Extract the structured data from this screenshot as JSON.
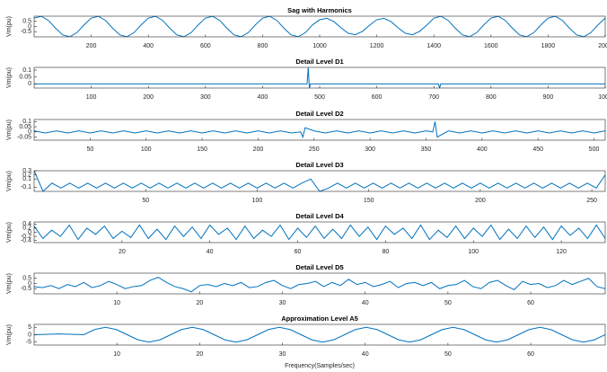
{
  "chart_data": [
    {
      "type": "line",
      "title": "Sag with Harmonics",
      "ylabel": "Vm(pu)",
      "color": "#0072bd",
      "x": [
        0,
        25,
        50,
        75,
        100,
        125,
        150,
        175,
        200,
        225,
        250,
        275,
        300,
        325,
        350,
        375,
        400,
        425,
        450,
        475,
        500,
        525,
        550,
        575,
        600,
        625,
        650,
        675,
        700,
        725,
        750,
        775,
        800,
        825,
        850,
        875,
        900,
        925,
        950,
        975,
        1000,
        1025,
        1050,
        1075,
        1100,
        1125,
        1150,
        1175,
        1200,
        1225,
        1250,
        1275,
        1300,
        1325,
        1350,
        1375,
        1400,
        1425,
        1450,
        1475,
        1500,
        1525,
        1550,
        1575,
        1600,
        1625,
        1650,
        1675,
        1700,
        1725,
        1750,
        1775,
        1800,
        1825,
        1850,
        1875,
        1900,
        1925,
        1950,
        1975,
        2000
      ],
      "values": [
        0.81,
        0.99,
        0.59,
        -0.16,
        -0.81,
        -0.99,
        -0.59,
        0.16,
        0.81,
        0.99,
        0.59,
        -0.16,
        -0.81,
        -0.99,
        -0.59,
        0.16,
        0.81,
        0.99,
        0.59,
        -0.16,
        -0.81,
        -0.99,
        -0.59,
        0.16,
        0.81,
        0.99,
        0.59,
        -0.16,
        -0.81,
        -0.99,
        -0.59,
        0.16,
        0.81,
        0.99,
        0.59,
        -0.16,
        -0.81,
        -0.99,
        -0.59,
        0.16,
        0.65,
        0.79,
        0.47,
        -0.13,
        -0.65,
        -0.79,
        -0.47,
        0.13,
        0.65,
        0.79,
        0.47,
        -0.13,
        -0.65,
        -0.79,
        -0.47,
        0.13,
        0.81,
        0.99,
        0.59,
        -0.16,
        -0.81,
        -0.99,
        -0.59,
        0.16,
        0.81,
        0.99,
        0.59,
        -0.16,
        -0.81,
        -0.99,
        -0.59,
        0.16,
        0.81,
        0.99,
        0.59,
        -0.16,
        -0.81,
        -0.99,
        -0.59,
        0.16,
        0.81
      ],
      "xlim": [
        0,
        2000
      ],
      "ylim": [
        -1,
        1
      ],
      "xticks": [
        200,
        400,
        600,
        800,
        1000,
        1200,
        1400,
        1600,
        1800,
        2000
      ],
      "yticks": [
        -0.5,
        0,
        0.5
      ]
    },
    {
      "type": "line",
      "title": "Detail Level D1",
      "ylabel": "Vm(pu)",
      "color": "#0072bd",
      "x": [
        0,
        478,
        480,
        482,
        484,
        708,
        710,
        712,
        1000
      ],
      "values": [
        0,
        0,
        0.12,
        -0.03,
        0,
        0,
        -0.03,
        0,
        0
      ],
      "xlim": [
        0,
        1000
      ],
      "ylim": [
        -0.03,
        0.12
      ],
      "xticks": [
        100,
        200,
        300,
        400,
        500,
        600,
        700,
        800,
        900,
        1000
      ],
      "yticks": [
        0,
        0.05,
        0.1
      ]
    },
    {
      "type": "line",
      "title": "Detail Level D2",
      "ylabel": "Vm(pu)",
      "color": "#0072bd",
      "x": [
        0,
        10,
        20,
        30,
        40,
        50,
        60,
        70,
        80,
        90,
        100,
        110,
        120,
        130,
        140,
        150,
        160,
        170,
        180,
        190,
        200,
        210,
        220,
        230,
        238,
        240,
        242,
        250,
        260,
        270,
        280,
        290,
        300,
        310,
        320,
        330,
        340,
        350,
        356,
        358,
        360,
        370,
        380,
        390,
        400,
        410,
        420,
        430,
        440,
        450,
        460,
        470,
        480,
        490,
        500,
        510
      ],
      "values": [
        0.01,
        -0.01,
        0.01,
        -0.01,
        0.01,
        -0.01,
        0.01,
        -0.01,
        0.01,
        -0.01,
        0.01,
        -0.01,
        0.01,
        -0.01,
        0.01,
        -0.01,
        0.01,
        -0.01,
        0.01,
        -0.01,
        0.01,
        -0.01,
        0.01,
        -0.01,
        0,
        -0.05,
        0.04,
        0.01,
        -0.01,
        0.01,
        -0.01,
        0.01,
        -0.01,
        0.01,
        -0.01,
        0.01,
        -0.01,
        0.01,
        0,
        0.1,
        -0.05,
        0.01,
        -0.01,
        0.01,
        -0.01,
        0.01,
        -0.01,
        0.01,
        -0.01,
        0.01,
        -0.01,
        0.01,
        -0.01,
        0.01,
        -0.01,
        0.01
      ],
      "xlim": [
        0,
        510
      ],
      "ylim": [
        -0.08,
        0.12
      ],
      "xticks": [
        50,
        100,
        150,
        200,
        250,
        300,
        350,
        400,
        450,
        500
      ],
      "yticks": [
        -0.05,
        0,
        0.05,
        0.1
      ]
    },
    {
      "type": "line",
      "title": "Detail Level D3",
      "ylabel": "Vm(pu)",
      "color": "#0072bd",
      "x": [
        0,
        4,
        8,
        12,
        16,
        20,
        24,
        28,
        32,
        36,
        40,
        44,
        48,
        52,
        56,
        60,
        64,
        68,
        72,
        76,
        80,
        84,
        88,
        92,
        96,
        100,
        104,
        108,
        112,
        116,
        120,
        124,
        128,
        132,
        136,
        140,
        144,
        148,
        152,
        156,
        160,
        164,
        168,
        172,
        176,
        180,
        184,
        188,
        192,
        196,
        200,
        204,
        208,
        212,
        216,
        220,
        224,
        228,
        232,
        236,
        240,
        244,
        248,
        252,
        256
      ],
      "values": [
        0.3,
        -0.2,
        0,
        -0.12,
        0,
        -0.12,
        0,
        -0.12,
        0,
        -0.12,
        0,
        -0.12,
        0,
        -0.12,
        0,
        -0.12,
        0,
        -0.12,
        0,
        -0.12,
        0,
        -0.12,
        0,
        -0.12,
        0,
        -0.12,
        0,
        -0.12,
        0,
        -0.12,
        0,
        0.1,
        -0.2,
        -0.12,
        0,
        -0.12,
        0,
        -0.12,
        0,
        -0.12,
        0,
        -0.12,
        0,
        -0.12,
        0,
        -0.12,
        0,
        -0.12,
        0,
        -0.12,
        0,
        -0.12,
        0,
        -0.12,
        0,
        -0.12,
        0,
        -0.12,
        0,
        -0.12,
        0,
        -0.12,
        0,
        -0.12,
        0.2
      ],
      "xlim": [
        0,
        256
      ],
      "ylim": [
        -0.2,
        0.3
      ],
      "xticks": [
        50,
        100,
        150,
        200,
        250
      ],
      "yticks": [
        -0.1,
        0.1,
        0.2,
        0.3
      ]
    },
    {
      "type": "line",
      "title": "Detail Level D4",
      "ylabel": "Vm(pu)",
      "color": "#0072bd",
      "x": [
        0,
        2,
        4,
        6,
        8,
        10,
        12,
        14,
        16,
        18,
        20,
        22,
        24,
        26,
        28,
        30,
        32,
        34,
        36,
        38,
        40,
        42,
        44,
        46,
        48,
        50,
        52,
        54,
        56,
        58,
        60,
        62,
        64,
        66,
        68,
        70,
        72,
        74,
        76,
        78,
        80,
        82,
        84,
        86,
        88,
        90,
        92,
        94,
        96,
        98,
        100,
        102,
        104,
        106,
        108,
        110,
        112,
        114,
        116,
        118,
        120,
        122,
        124,
        126,
        128,
        130
      ],
      "values": [
        0.3,
        -0.3,
        0.1,
        -0.2,
        0.35,
        -0.35,
        0.2,
        -0.1,
        0.3,
        -0.3,
        0.05,
        -0.25,
        0.35,
        -0.3,
        0.15,
        -0.35,
        0.3,
        -0.2,
        0.25,
        -0.3,
        0.35,
        -0.1,
        0.2,
        -0.35,
        0.3,
        -0.3,
        0.1,
        -0.2,
        0.35,
        -0.35,
        0.2,
        -0.25,
        0.3,
        -0.3,
        0.15,
        -0.3,
        0.35,
        -0.2,
        0.25,
        -0.35,
        0.3,
        -0.1,
        0.2,
        -0.3,
        0.35,
        -0.35,
        0.1,
        -0.25,
        0.3,
        -0.3,
        0.2,
        -0.2,
        0.35,
        -0.35,
        0.15,
        -0.3,
        0.3,
        -0.25,
        0.25,
        -0.35,
        0.3,
        -0.15,
        0.2,
        -0.3,
        0.35,
        -0.3
      ],
      "xlim": [
        0,
        130
      ],
      "ylim": [
        -0.5,
        0.5
      ],
      "xticks": [
        20,
        40,
        60,
        80,
        100,
        120
      ],
      "yticks": [
        -0.4,
        -0.2,
        0,
        0.2,
        0.4
      ]
    },
    {
      "type": "line",
      "title": "Detail Level D5",
      "ylabel": "Vm(pu)",
      "color": "#0072bd",
      "x": [
        0,
        1,
        2,
        3,
        4,
        5,
        6,
        7,
        8,
        9,
        10,
        11,
        12,
        13,
        14,
        15,
        16,
        17,
        18,
        19,
        20,
        21,
        22,
        23,
        24,
        25,
        26,
        27,
        28,
        29,
        30,
        31,
        32,
        33,
        34,
        35,
        36,
        37,
        38,
        39,
        40,
        41,
        42,
        43,
        44,
        45,
        46,
        47,
        48,
        49,
        50,
        51,
        52,
        53,
        54,
        55,
        56,
        57,
        58,
        59,
        60,
        61,
        62,
        63,
        64,
        65,
        66,
        67,
        68,
        69
      ],
      "values": [
        -0.3,
        -0.4,
        -0.2,
        -0.5,
        -0.1,
        -0.3,
        0.1,
        -0.4,
        -0.2,
        0.2,
        -0.1,
        -0.5,
        -0.3,
        -0.2,
        0.3,
        0.6,
        0.1,
        -0.3,
        -0.5,
        -0.8,
        -0.2,
        -0.1,
        -0.3,
        0,
        -0.2,
        0.1,
        -0.4,
        -0.3,
        0.1,
        0.3,
        -0.2,
        -0.5,
        -0.1,
        0,
        0.2,
        -0.3,
        0.1,
        -0.2,
        0.4,
        -0.1,
        0.1,
        -0.3,
        -0.1,
        0.2,
        -0.4,
        0,
        0.1,
        -0.2,
        0.1,
        -0.5,
        -0.2,
        -0.1,
        0.3,
        -0.3,
        -0.5,
        0.1,
        0.3,
        -0.2,
        -0.6,
        0.2,
        -0.1,
        0,
        -0.4,
        -0.2,
        0.3,
        -0.1,
        0.2,
        0.5,
        -0.3,
        -0.5
      ],
      "xlim": [
        0,
        69
      ],
      "ylim": [
        -1,
        1
      ],
      "xticks": [
        10,
        20,
        30,
        40,
        50,
        60
      ],
      "yticks": [
        -0.5,
        0,
        0.5
      ]
    },
    {
      "type": "line",
      "title": "Approximation Level A5",
      "ylabel": "Vm(pu)",
      "xlabel": "Frequency(Samples/sec)",
      "color": "#0072bd",
      "x": [
        0,
        3,
        6,
        7.3125,
        8.625,
        9.9375,
        11.25,
        12.5625,
        13.875,
        15.1875,
        16.5,
        17.8125,
        19.125,
        20.4375,
        21.75,
        23.0625,
        24.375,
        25.6875,
        27,
        28.3125,
        29.625,
        30.9375,
        32.25,
        33.5625,
        34.875,
        36.1875,
        37.5,
        38.8125,
        40.125,
        41.4375,
        42.75,
        44.0625,
        45.375,
        46.6875,
        48,
        49.3125,
        50.625,
        51.9375,
        53.25,
        54.5625,
        55.875,
        57.1875,
        58.5,
        59.8125,
        61.125,
        62.4375,
        63.75,
        65.0625,
        66.375,
        67.6875,
        69
      ],
      "values": [
        0,
        0.5,
        0,
        3.5,
        5,
        3.5,
        0,
        -3.5,
        -5,
        -3.5,
        0,
        3.5,
        5,
        3.5,
        0,
        -3.5,
        -5,
        -3.5,
        0,
        3.5,
        5,
        3.5,
        0,
        -3.5,
        -5,
        -3.5,
        0,
        3.5,
        5,
        3.5,
        0,
        -3.5,
        -5,
        -3.5,
        0,
        3.5,
        5,
        3.5,
        0,
        -3.5,
        -5,
        -3.5,
        0,
        3.5,
        5,
        3.5,
        0,
        -3.5,
        -5,
        -3.5,
        0
      ],
      "xlim": [
        0,
        69
      ],
      "ylim": [
        -7,
        7
      ],
      "xticks": [
        10,
        20,
        30,
        40,
        50,
        60
      ],
      "yticks": [
        -5,
        0,
        5
      ]
    }
  ]
}
